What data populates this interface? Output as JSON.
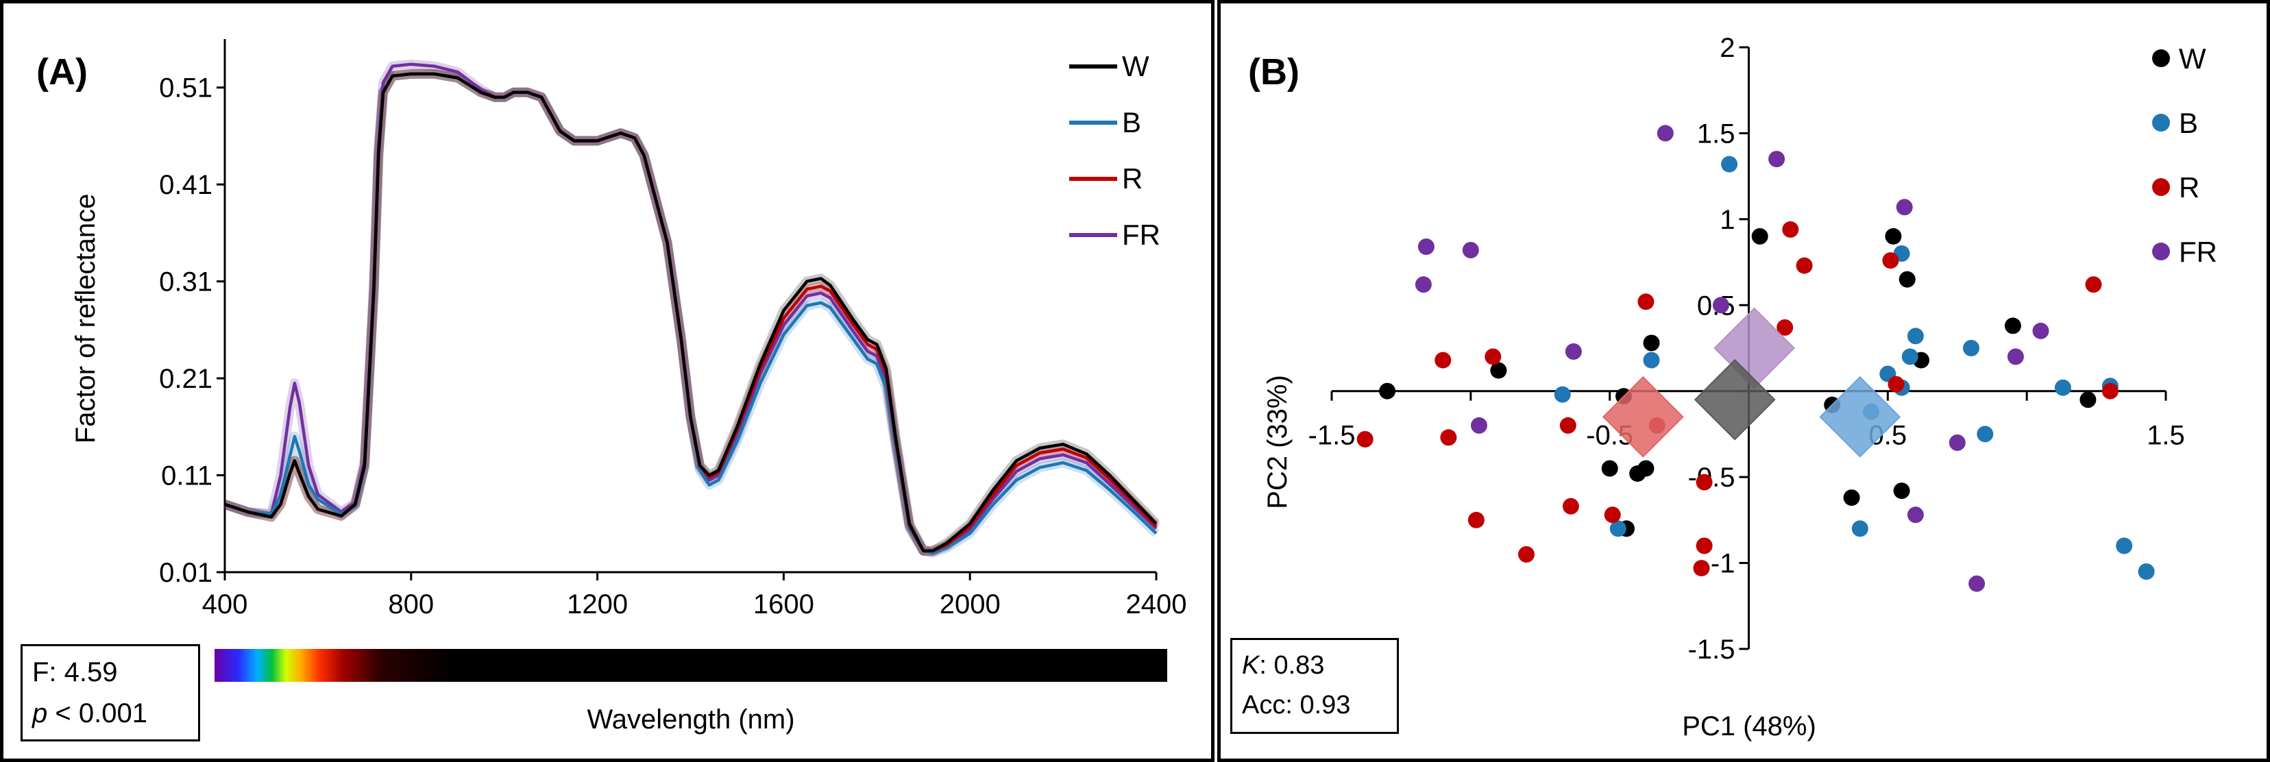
{
  "chart_data": [
    {
      "type": "line",
      "panel_label": "(A)",
      "xlabel": "Wavelength  (nm)",
      "ylabel": "Factor of reflectance",
      "xlim": [
        400,
        2400
      ],
      "ylim": [
        0.01,
        0.56
      ],
      "x_ticks": [
        "400",
        "800",
        "1200",
        "1600",
        "2000",
        "2400"
      ],
      "y_ticks": [
        "0.01",
        "0.11",
        "0.21",
        "0.31",
        "0.41",
        "0.51"
      ],
      "legend_position": "top-right",
      "x": [
        400,
        450,
        500,
        520,
        540,
        550,
        560,
        580,
        600,
        650,
        680,
        700,
        720,
        730,
        740,
        760,
        800,
        850,
        900,
        950,
        980,
        1000,
        1020,
        1050,
        1080,
        1120,
        1150,
        1200,
        1250,
        1280,
        1300,
        1350,
        1380,
        1400,
        1420,
        1440,
        1460,
        1500,
        1550,
        1600,
        1650,
        1680,
        1700,
        1750,
        1780,
        1800,
        1820,
        1840,
        1870,
        1900,
        1920,
        1950,
        2000,
        2050,
        2100,
        2150,
        2200,
        2250,
        2300,
        2350,
        2400
      ],
      "series": [
        {
          "name": "W",
          "color": "#000000",
          "values": [
            0.08,
            0.072,
            0.067,
            0.08,
            0.112,
            0.125,
            0.112,
            0.088,
            0.075,
            0.068,
            0.08,
            0.12,
            0.3,
            0.44,
            0.505,
            0.522,
            0.524,
            0.524,
            0.52,
            0.505,
            0.5,
            0.5,
            0.505,
            0.505,
            0.5,
            0.465,
            0.455,
            0.455,
            0.463,
            0.458,
            0.44,
            0.35,
            0.25,
            0.17,
            0.12,
            0.11,
            0.115,
            0.16,
            0.225,
            0.28,
            0.31,
            0.313,
            0.306,
            0.27,
            0.25,
            0.245,
            0.22,
            0.15,
            0.06,
            0.032,
            0.032,
            0.04,
            0.06,
            0.095,
            0.125,
            0.138,
            0.142,
            0.132,
            0.11,
            0.085,
            0.06
          ]
        },
        {
          "name": "B",
          "color": "#1f77b4",
          "values": [
            0.08,
            0.072,
            0.07,
            0.09,
            0.13,
            0.15,
            0.135,
            0.1,
            0.085,
            0.07,
            0.078,
            0.118,
            0.3,
            0.44,
            0.505,
            0.522,
            0.524,
            0.524,
            0.52,
            0.505,
            0.5,
            0.5,
            0.505,
            0.505,
            0.5,
            0.465,
            0.455,
            0.455,
            0.463,
            0.458,
            0.44,
            0.35,
            0.25,
            0.17,
            0.115,
            0.1,
            0.105,
            0.145,
            0.205,
            0.255,
            0.285,
            0.288,
            0.283,
            0.25,
            0.23,
            0.225,
            0.2,
            0.14,
            0.055,
            0.032,
            0.03,
            0.035,
            0.05,
            0.08,
            0.105,
            0.118,
            0.123,
            0.115,
            0.095,
            0.073,
            0.05
          ]
        },
        {
          "name": "R",
          "color": "#c00000",
          "values": [
            0.08,
            0.072,
            0.067,
            0.08,
            0.112,
            0.125,
            0.112,
            0.088,
            0.075,
            0.068,
            0.08,
            0.12,
            0.3,
            0.44,
            0.505,
            0.522,
            0.524,
            0.524,
            0.52,
            0.505,
            0.5,
            0.5,
            0.505,
            0.505,
            0.5,
            0.465,
            0.455,
            0.455,
            0.463,
            0.458,
            0.44,
            0.35,
            0.25,
            0.17,
            0.12,
            0.108,
            0.113,
            0.157,
            0.22,
            0.272,
            0.302,
            0.305,
            0.3,
            0.265,
            0.245,
            0.24,
            0.215,
            0.147,
            0.058,
            0.032,
            0.032,
            0.038,
            0.057,
            0.09,
            0.12,
            0.133,
            0.137,
            0.128,
            0.106,
            0.082,
            0.057
          ]
        },
        {
          "name": "FR",
          "color": "#7030a0",
          "values": [
            0.08,
            0.072,
            0.07,
            0.11,
            0.18,
            0.205,
            0.185,
            0.12,
            0.09,
            0.072,
            0.082,
            0.125,
            0.31,
            0.45,
            0.515,
            0.532,
            0.534,
            0.532,
            0.526,
            0.508,
            0.5,
            0.5,
            0.505,
            0.505,
            0.5,
            0.465,
            0.455,
            0.455,
            0.463,
            0.458,
            0.44,
            0.35,
            0.25,
            0.17,
            0.118,
            0.105,
            0.11,
            0.15,
            0.215,
            0.265,
            0.295,
            0.298,
            0.293,
            0.258,
            0.238,
            0.233,
            0.208,
            0.143,
            0.057,
            0.032,
            0.031,
            0.037,
            0.054,
            0.086,
            0.114,
            0.127,
            0.131,
            0.123,
            0.101,
            0.078,
            0.055
          ]
        }
      ],
      "stats": {
        "f_label": "F: 4.59",
        "p_italic": "p",
        "p_rest": " < 0.001"
      }
    },
    {
      "type": "scatter",
      "panel_label": "(B)",
      "xlabel": "PC1 (48%)",
      "ylabel": "PC2 (33%)",
      "xlim": [
        -1.5,
        1.5
      ],
      "ylim": [
        -1.5,
        2
      ],
      "x_ticks": [
        "-1.5",
        "-0.5",
        "0.5",
        "1.5"
      ],
      "y_ticks": [
        "2",
        "1.5",
        "1",
        "0.5",
        "-0.5",
        "-1",
        "-1.5"
      ],
      "legend_position": "top-right",
      "series": [
        {
          "name": "W",
          "color": "#000000",
          "points": [
            [
              -1.3,
              0.0
            ],
            [
              -0.9,
              0.12
            ],
            [
              -0.5,
              -0.45
            ],
            [
              -0.4,
              -0.48
            ],
            [
              -0.37,
              -0.45
            ],
            [
              -0.35,
              0.28
            ],
            [
              -0.45,
              -0.03
            ],
            [
              -0.44,
              -0.8
            ],
            [
              0.04,
              0.9
            ],
            [
              0.3,
              -0.08
            ],
            [
              0.37,
              -0.62
            ],
            [
              0.55,
              -0.58
            ],
            [
              0.57,
              0.65
            ],
            [
              0.52,
              0.9
            ],
            [
              0.62,
              0.18
            ],
            [
              0.95,
              0.38
            ],
            [
              1.22,
              -0.05
            ]
          ]
        },
        {
          "name": "B",
          "color": "#1f77b4",
          "points": [
            [
              -0.35,
              0.18
            ],
            [
              -0.67,
              -0.02
            ],
            [
              -0.47,
              -0.8
            ],
            [
              -0.07,
              1.32
            ],
            [
              0.4,
              -0.8
            ],
            [
              0.44,
              -0.12
            ],
            [
              0.5,
              0.1
            ],
            [
              0.55,
              0.02
            ],
            [
              0.58,
              0.2
            ],
            [
              0.6,
              0.32
            ],
            [
              0.55,
              0.8
            ],
            [
              0.8,
              0.25
            ],
            [
              0.85,
              -0.25
            ],
            [
              1.13,
              0.02
            ],
            [
              1.3,
              0.03
            ],
            [
              1.35,
              -0.9
            ],
            [
              1.43,
              -1.05
            ]
          ]
        },
        {
          "name": "R",
          "color": "#c00000",
          "points": [
            [
              -1.38,
              -0.28
            ],
            [
              -1.1,
              0.18
            ],
            [
              -1.08,
              -0.27
            ],
            [
              -0.92,
              0.2
            ],
            [
              -0.98,
              -0.75
            ],
            [
              -0.8,
              -0.95
            ],
            [
              -0.65,
              -0.2
            ],
            [
              -0.64,
              -0.67
            ],
            [
              -0.49,
              -0.72
            ],
            [
              -0.37,
              0.52
            ],
            [
              -0.33,
              -0.2
            ],
            [
              -0.16,
              -0.53
            ],
            [
              -0.16,
              -0.9
            ],
            [
              -0.17,
              -1.03
            ],
            [
              0.15,
              0.94
            ],
            [
              0.2,
              0.73
            ],
            [
              0.13,
              0.37
            ],
            [
              0.51,
              0.76
            ],
            [
              0.53,
              0.04
            ],
            [
              1.24,
              0.62
            ],
            [
              1.3,
              0.0
            ]
          ]
        },
        {
          "name": "FR",
          "color": "#7030a0",
          "points": [
            [
              -1.16,
              0.84
            ],
            [
              -1.17,
              0.62
            ],
            [
              -1.0,
              0.82
            ],
            [
              -0.97,
              -0.2
            ],
            [
              -0.63,
              0.23
            ],
            [
              -0.3,
              1.5
            ],
            [
              -0.1,
              0.5
            ],
            [
              0.1,
              1.35
            ],
            [
              0.56,
              1.07
            ],
            [
              0.6,
              -0.72
            ],
            [
              0.75,
              -0.3
            ],
            [
              0.96,
              0.2
            ],
            [
              1.05,
              0.35
            ],
            [
              0.82,
              -1.12
            ]
          ]
        }
      ],
      "centroids": [
        {
          "name": "FR",
          "color": "#b491c8",
          "x": 0.02,
          "y": 0.25
        },
        {
          "name": "W",
          "color": "#595959",
          "x": -0.05,
          "y": -0.05
        },
        {
          "name": "R",
          "color": "#e06666",
          "x": -0.38,
          "y": -0.15
        },
        {
          "name": "B",
          "color": "#6aa6d8",
          "x": 0.4,
          "y": -0.15
        }
      ],
      "stats": {
        "k_italic": "K",
        "k_rest": ": 0.83",
        "acc_label": "Acc:  0.93"
      }
    }
  ]
}
